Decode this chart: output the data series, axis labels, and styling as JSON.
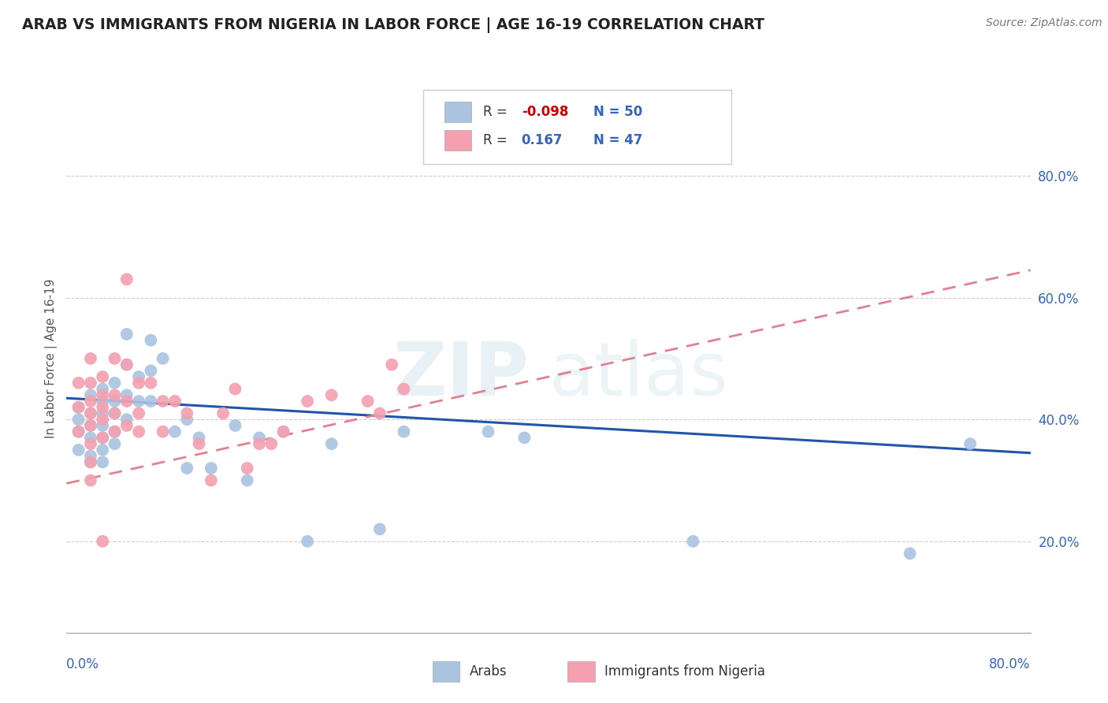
{
  "title": "ARAB VS IMMIGRANTS FROM NIGERIA IN LABOR FORCE | AGE 16-19 CORRELATION CHART",
  "source": "Source: ZipAtlas.com",
  "ylabel": "In Labor Force | Age 16-19",
  "xlim": [
    0.0,
    0.8
  ],
  "ylim": [
    0.05,
    0.95
  ],
  "ytick_vals": [
    0.2,
    0.4,
    0.6,
    0.8
  ],
  "ytick_labels": [
    "20.0%",
    "40.0%",
    "60.0%",
    "80.0%"
  ],
  "arab_color": "#aac4e0",
  "nigeria_color": "#f4a0b0",
  "arab_line_color": "#2255aa",
  "nigeria_line_color": "#e08090",
  "watermark_zip": "ZIP",
  "watermark_atlas": "atlas",
  "arab_x": [
    0.01,
    0.01,
    0.01,
    0.01,
    0.02,
    0.02,
    0.02,
    0.02,
    0.02,
    0.02,
    0.03,
    0.03,
    0.03,
    0.03,
    0.03,
    0.03,
    0.03,
    0.04,
    0.04,
    0.04,
    0.04,
    0.04,
    0.05,
    0.05,
    0.05,
    0.05,
    0.06,
    0.06,
    0.07,
    0.07,
    0.07,
    0.08,
    0.09,
    0.1,
    0.1,
    0.11,
    0.12,
    0.14,
    0.16,
    0.18,
    0.2,
    0.22,
    0.26,
    0.28,
    0.35,
    0.38,
    0.52,
    0.7,
    0.75,
    0.15
  ],
  "arab_y": [
    0.42,
    0.4,
    0.38,
    0.35,
    0.44,
    0.41,
    0.39,
    0.37,
    0.34,
    0.33,
    0.45,
    0.43,
    0.41,
    0.39,
    0.37,
    0.35,
    0.33,
    0.46,
    0.43,
    0.41,
    0.38,
    0.36,
    0.54,
    0.49,
    0.44,
    0.4,
    0.47,
    0.43,
    0.53,
    0.48,
    0.43,
    0.5,
    0.38,
    0.4,
    0.32,
    0.37,
    0.32,
    0.39,
    0.37,
    0.38,
    0.2,
    0.36,
    0.22,
    0.38,
    0.38,
    0.37,
    0.2,
    0.18,
    0.36,
    0.3
  ],
  "nigeria_x": [
    0.01,
    0.01,
    0.01,
    0.02,
    0.02,
    0.02,
    0.02,
    0.02,
    0.02,
    0.02,
    0.02,
    0.03,
    0.03,
    0.03,
    0.03,
    0.03,
    0.03,
    0.04,
    0.04,
    0.04,
    0.04,
    0.05,
    0.05,
    0.05,
    0.05,
    0.06,
    0.06,
    0.06,
    0.07,
    0.08,
    0.08,
    0.09,
    0.1,
    0.11,
    0.12,
    0.13,
    0.14,
    0.15,
    0.16,
    0.17,
    0.18,
    0.2,
    0.22,
    0.25,
    0.26,
    0.27,
    0.28
  ],
  "nigeria_y": [
    0.46,
    0.42,
    0.38,
    0.5,
    0.46,
    0.43,
    0.41,
    0.39,
    0.36,
    0.33,
    0.3,
    0.47,
    0.44,
    0.42,
    0.4,
    0.37,
    0.2,
    0.5,
    0.44,
    0.41,
    0.38,
    0.63,
    0.49,
    0.43,
    0.39,
    0.46,
    0.41,
    0.38,
    0.46,
    0.43,
    0.38,
    0.43,
    0.41,
    0.36,
    0.3,
    0.41,
    0.45,
    0.32,
    0.36,
    0.36,
    0.38,
    0.43,
    0.44,
    0.43,
    0.41,
    0.49,
    0.45
  ],
  "arab_trend_x": [
    0.0,
    0.8
  ],
  "arab_trend_y": [
    0.435,
    0.345
  ],
  "nigeria_trend_x": [
    0.0,
    0.8
  ],
  "nigeria_trend_y": [
    0.295,
    0.645
  ]
}
